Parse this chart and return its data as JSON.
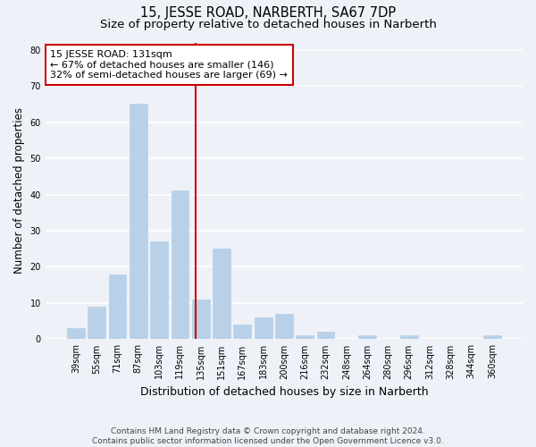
{
  "title": "15, JESSE ROAD, NARBERTH, SA67 7DP",
  "subtitle": "Size of property relative to detached houses in Narberth",
  "xlabel": "Distribution of detached houses by size in Narberth",
  "ylabel": "Number of detached properties",
  "categories": [
    "39sqm",
    "55sqm",
    "71sqm",
    "87sqm",
    "103sqm",
    "119sqm",
    "135sqm",
    "151sqm",
    "167sqm",
    "183sqm",
    "200sqm",
    "216sqm",
    "232sqm",
    "248sqm",
    "264sqm",
    "280sqm",
    "296sqm",
    "312sqm",
    "328sqm",
    "344sqm",
    "360sqm"
  ],
  "values": [
    3,
    9,
    18,
    65,
    27,
    41,
    11,
    25,
    4,
    6,
    7,
    1,
    2,
    0,
    1,
    0,
    1,
    0,
    0,
    0,
    1
  ],
  "bar_color": "#b8d0e8",
  "bar_edgecolor": "#b8d0e8",
  "vline_color": "#cc0000",
  "annotation_text": "15 JESSE ROAD: 131sqm\n← 67% of detached houses are smaller (146)\n32% of semi-detached houses are larger (69) →",
  "annotation_box_color": "#ffffff",
  "annotation_box_edgecolor": "#cc0000",
  "ylim": [
    0,
    82
  ],
  "yticks": [
    0,
    10,
    20,
    30,
    40,
    50,
    60,
    70,
    80
  ],
  "background_color": "#eef2f8",
  "grid_color": "#ffffff",
  "footer": "Contains HM Land Registry data © Crown copyright and database right 2024.\nContains public sector information licensed under the Open Government Licence v3.0.",
  "title_fontsize": 10.5,
  "subtitle_fontsize": 9.5,
  "xlabel_fontsize": 9,
  "ylabel_fontsize": 8.5,
  "tick_fontsize": 7,
  "annotation_fontsize": 8,
  "footer_fontsize": 6.5,
  "vline_pos": 5.75
}
